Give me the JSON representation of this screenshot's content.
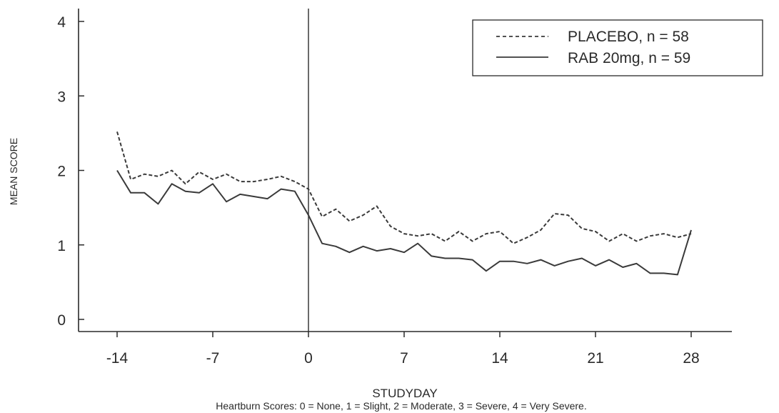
{
  "chart_data": {
    "type": "line",
    "xlabel": "STUDYDAY",
    "ylabel": "MEAN SCORE",
    "footnote": "Heartburn Scores: 0 = None, 1 = Slight, 2 = Moderate, 3 = Severe, 4 = Very Severe.",
    "xlim": [
      -16.5,
      31
    ],
    "ylim": [
      -0.2,
      4.2
    ],
    "x_ticks": [
      -14,
      -7,
      0,
      7,
      14,
      21,
      28
    ],
    "x_tick_labels": [
      "-14",
      "-7",
      "0",
      "7",
      "14",
      "21",
      "28"
    ],
    "y_ticks": [
      0,
      1,
      2,
      3,
      4
    ],
    "y_tick_labels": [
      "0",
      "1",
      "2",
      "3",
      "4"
    ],
    "reference_line_x": 0,
    "grid": false,
    "legend": {
      "position": "top-right",
      "entries": [
        {
          "label": "PLACEBO, n = 58",
          "style": "dashed"
        },
        {
          "label": "RAB 20mg, n = 59",
          "style": "solid"
        }
      ]
    },
    "series": [
      {
        "name": "PLACEBO, n = 58",
        "style": "dashed",
        "color": "#3a3a3a",
        "x": [
          -14,
          -13,
          -12,
          -11,
          -10,
          -9,
          -8,
          -7,
          -6,
          -5,
          -4,
          -3,
          -2,
          -1,
          0,
          1,
          2,
          3,
          4,
          5,
          6,
          7,
          8,
          9,
          10,
          11,
          12,
          13,
          14,
          15,
          16,
          17,
          18,
          19,
          20,
          21,
          22,
          23,
          24,
          25,
          26,
          27,
          28
        ],
        "y": [
          2.52,
          1.88,
          1.95,
          1.92,
          2.0,
          1.82,
          1.98,
          1.88,
          1.95,
          1.85,
          1.85,
          1.88,
          1.92,
          1.85,
          1.75,
          1.38,
          1.48,
          1.32,
          1.4,
          1.52,
          1.25,
          1.15,
          1.12,
          1.15,
          1.05,
          1.18,
          1.05,
          1.15,
          1.18,
          1.02,
          1.1,
          1.2,
          1.42,
          1.4,
          1.22,
          1.18,
          1.05,
          1.15,
          1.05,
          1.12,
          1.15,
          1.1,
          1.15
        ]
      },
      {
        "name": "RAB 20mg, n = 59",
        "style": "solid",
        "color": "#3a3a3a",
        "x": [
          -14,
          -13,
          -12,
          -11,
          -10,
          -9,
          -8,
          -7,
          -6,
          -5,
          -4,
          -3,
          -2,
          -1,
          0,
          1,
          2,
          3,
          4,
          5,
          6,
          7,
          8,
          9,
          10,
          11,
          12,
          13,
          14,
          15,
          16,
          17,
          18,
          19,
          20,
          21,
          22,
          23,
          24,
          25,
          26,
          27,
          28
        ],
        "y": [
          2.0,
          1.7,
          1.7,
          1.55,
          1.82,
          1.72,
          1.7,
          1.82,
          1.58,
          1.68,
          1.65,
          1.62,
          1.75,
          1.72,
          1.4,
          1.02,
          0.98,
          0.9,
          0.98,
          0.92,
          0.95,
          0.9,
          1.02,
          0.85,
          0.82,
          0.82,
          0.8,
          0.65,
          0.78,
          0.78,
          0.75,
          0.8,
          0.72,
          0.78,
          0.82,
          0.72,
          0.8,
          0.7,
          0.75,
          0.62,
          0.62,
          0.6,
          1.2
        ]
      }
    ]
  }
}
